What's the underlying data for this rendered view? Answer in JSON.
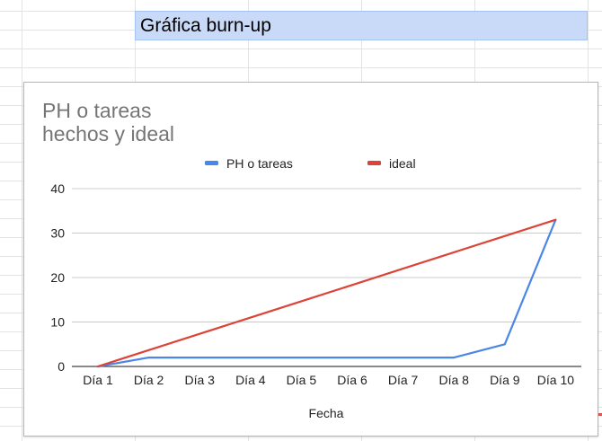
{
  "sheet": {
    "header_cell": "Gráfica burn-up"
  },
  "chart_data": {
    "type": "line",
    "title_lines": [
      "PH o tareas",
      "hechos y ideal"
    ],
    "xlabel": "Fecha",
    "ylabel": "",
    "ylim": [
      0,
      40
    ],
    "yticks": [
      0,
      10,
      20,
      30,
      40
    ],
    "grid": true,
    "legend_position": "top",
    "categories": [
      "Día 1",
      "Día 2",
      "Día 3",
      "Día 4",
      "Día 5",
      "Día 6",
      "Día 7",
      "Día 8",
      "Día 9",
      "Día 10"
    ],
    "series": [
      {
        "name": "PH o tareas",
        "color": "#4a86e8",
        "values": [
          0,
          2,
          2,
          2,
          2,
          2,
          2,
          2,
          5,
          33
        ]
      },
      {
        "name": "ideal",
        "color": "#db4437",
        "values": [
          0,
          3.67,
          7.33,
          11,
          14.67,
          18.33,
          22,
          25.67,
          29.33,
          33
        ]
      }
    ]
  }
}
